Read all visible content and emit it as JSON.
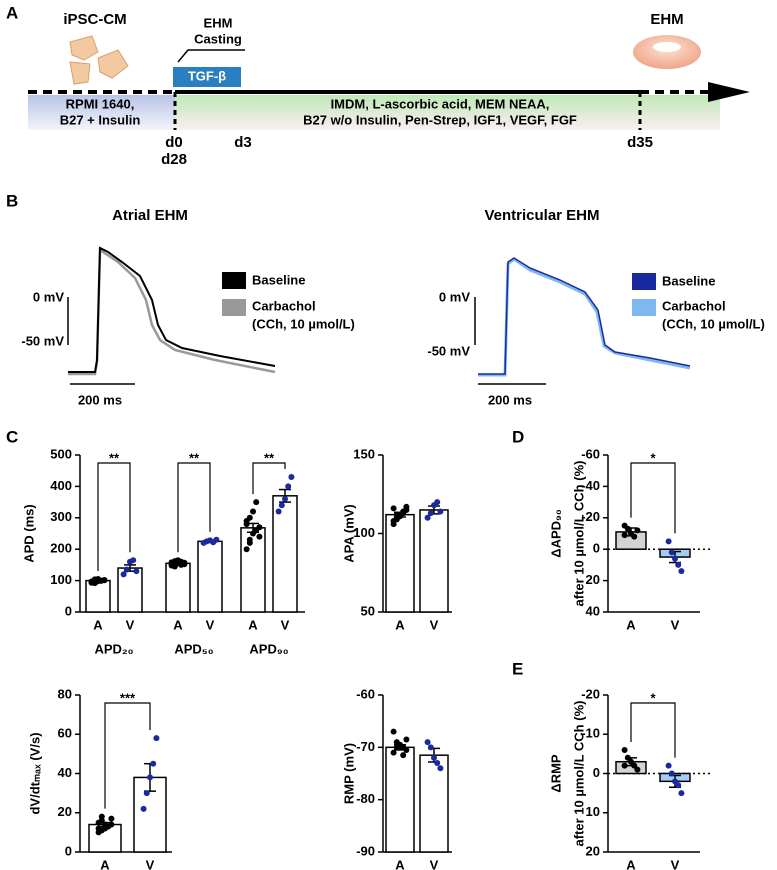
{
  "panels": [
    "A",
    "B",
    "C",
    "D",
    "E"
  ],
  "timeline": {
    "cell_title": "iPSC-CM",
    "casting": [
      "EHM",
      "Casting"
    ],
    "factor": "TGF-β",
    "product": "EHM",
    "medium_left": [
      "RPMI 1640,",
      "B27 + Insulin"
    ],
    "medium_right": [
      "IMDM, L-ascorbic acid, MEM NEAA,",
      "B27 w/o Insulin, Pen-Strep, IGF1, VEGF, FGF"
    ],
    "days": [
      "d0",
      "d28",
      "d3",
      "d35"
    ]
  },
  "traces": {
    "atrial": {
      "title": "Atrial EHM",
      "legend": [
        "Baseline",
        "Carbachol",
        "(CCh, 10 µmol/L)"
      ],
      "scale_y": [
        "0 mV",
        "-50 mV"
      ],
      "scale_x": "200 ms"
    },
    "ventricular": {
      "title": "Ventricular EHM",
      "legend": [
        "Baseline",
        "Carbachol",
        "(CCh, 10 µmol/L)"
      ],
      "scale_y": [
        "0 mV",
        "-50 mV"
      ],
      "scale_x": "200 ms"
    }
  },
  "chart_data": [
    {
      "type": "bar",
      "ylabel": "APD (ms)",
      "ylim": [
        0,
        500
      ],
      "yticks": [
        0,
        100,
        200,
        300,
        400,
        500
      ],
      "categories": [
        "A",
        "V",
        "A",
        "V",
        "A",
        "V"
      ],
      "groups": [
        "APD₂₀",
        "APD₅₀",
        "APD₉₀"
      ],
      "values": [
        100,
        140,
        155,
        225,
        268,
        370
      ],
      "errors": [
        3,
        10,
        2,
        3,
        14,
        20
      ],
      "points": [
        [
          95,
          92,
          98,
          100,
          102,
          97,
          94,
          105,
          99,
          101,
          93,
          104
        ],
        [
          120,
          135,
          160,
          165,
          130
        ],
        [
          148,
          150,
          155,
          160,
          152,
          158,
          145,
          165,
          150,
          157,
          153,
          162
        ],
        [
          220,
          225,
          228,
          222,
          230
        ],
        [
          200,
          230,
          250,
          260,
          270,
          280,
          300,
          320,
          350,
          240,
          290,
          220
        ],
        [
          320,
          340,
          360,
          400,
          430
        ]
      ],
      "bar_colors": [
        "#ffffff",
        "#ffffff",
        "#ffffff",
        "#ffffff",
        "#ffffff",
        "#ffffff"
      ],
      "point_colors": [
        "#000000",
        "#1a2a9e",
        "#000000",
        "#1a2a9e",
        "#000000",
        "#1a2a9e"
      ],
      "significance": [
        "**",
        "**",
        "**"
      ]
    },
    {
      "type": "bar",
      "ylabel": "APA (mV)",
      "ylim": [
        50,
        150
      ],
      "yticks": [
        50,
        100,
        150
      ],
      "categories": [
        "A",
        "V"
      ],
      "values": [
        112,
        115
      ],
      "errors": [
        1.5,
        2.5
      ],
      "points": [
        [
          108,
          110,
          112,
          113,
          115,
          116,
          109,
          111,
          114,
          117,
          106,
          112
        ],
        [
          110,
          113,
          118,
          120,
          114
        ]
      ],
      "bar_colors": [
        "#ffffff",
        "#ffffff"
      ],
      "point_colors": [
        "#000000",
        "#1a2a9e"
      ]
    },
    {
      "type": "bar",
      "ylabel": "dV/dtₘₐₓ (V/s)",
      "ylim": [
        0,
        80
      ],
      "yticks": [
        0,
        20,
        40,
        60,
        80
      ],
      "categories": [
        "A",
        "V"
      ],
      "values": [
        14,
        38
      ],
      "errors": [
        1,
        7
      ],
      "points": [
        [
          10,
          11,
          12,
          13,
          14,
          15,
          16,
          14,
          13,
          17,
          12,
          18
        ],
        [
          22,
          30,
          38,
          45,
          58
        ]
      ],
      "bar_colors": [
        "#ffffff",
        "#ffffff"
      ],
      "point_colors": [
        "#000000",
        "#1a2a9e"
      ],
      "significance": [
        "***"
      ]
    },
    {
      "type": "bar",
      "ylabel": "RMP (mV)",
      "ylim": [
        -90,
        -60
      ],
      "yticks": [
        -90,
        -80,
        -70,
        -60
      ],
      "categories": [
        "A",
        "V"
      ],
      "values": [
        -70,
        -71.5
      ],
      "errors": [
        0.5,
        1.3
      ],
      "points": [
        [
          -67,
          -69,
          -70,
          -70,
          -70.5,
          -71,
          -70,
          -69.5,
          -71.5,
          -68.5
        ],
        [
          -69,
          -70,
          -72,
          -73,
          -74
        ]
      ],
      "bar_colors": [
        "#ffffff",
        "#ffffff"
      ],
      "point_colors": [
        "#000000",
        "#1a2a9e"
      ]
    },
    {
      "type": "bar",
      "ylabel": [
        "ΔAPD₉₀",
        "after  10 µmol/L CCh (%)"
      ],
      "ylim": [
        40,
        -60
      ],
      "yticks": [
        40,
        20,
        0,
        -20,
        -40,
        -60
      ],
      "categories": [
        "A",
        "V"
      ],
      "values": [
        -11,
        5
      ],
      "errors": [
        2.5,
        3.5
      ],
      "points": [
        [
          -15,
          -13,
          -10,
          -8,
          -12,
          -9
        ],
        [
          -5,
          2,
          6,
          10,
          14
        ]
      ],
      "bar_colors": [
        "#d3d3d3",
        "#a6cbf5"
      ],
      "point_colors": [
        "#000000",
        "#1a2a9e"
      ],
      "significance": [
        "*"
      ]
    },
    {
      "type": "bar",
      "ylabel": [
        "ΔRMP",
        "after  10 µmol/L CCh (%)"
      ],
      "ylim": [
        20,
        -20
      ],
      "yticks": [
        20,
        10,
        0,
        -10,
        -20
      ],
      "categories": [
        "A",
        "V"
      ],
      "values": [
        -3,
        2
      ],
      "errors": [
        1,
        1.5
      ],
      "points": [
        [
          -6,
          -4,
          -3,
          -2,
          -1,
          -2
        ],
        [
          -2,
          0,
          2,
          3,
          5
        ]
      ],
      "bar_colors": [
        "#d3d3d3",
        "#a6cbf5"
      ],
      "point_colors": [
        "#000000",
        "#1a2a9e"
      ],
      "significance": [
        "*"
      ]
    }
  ]
}
